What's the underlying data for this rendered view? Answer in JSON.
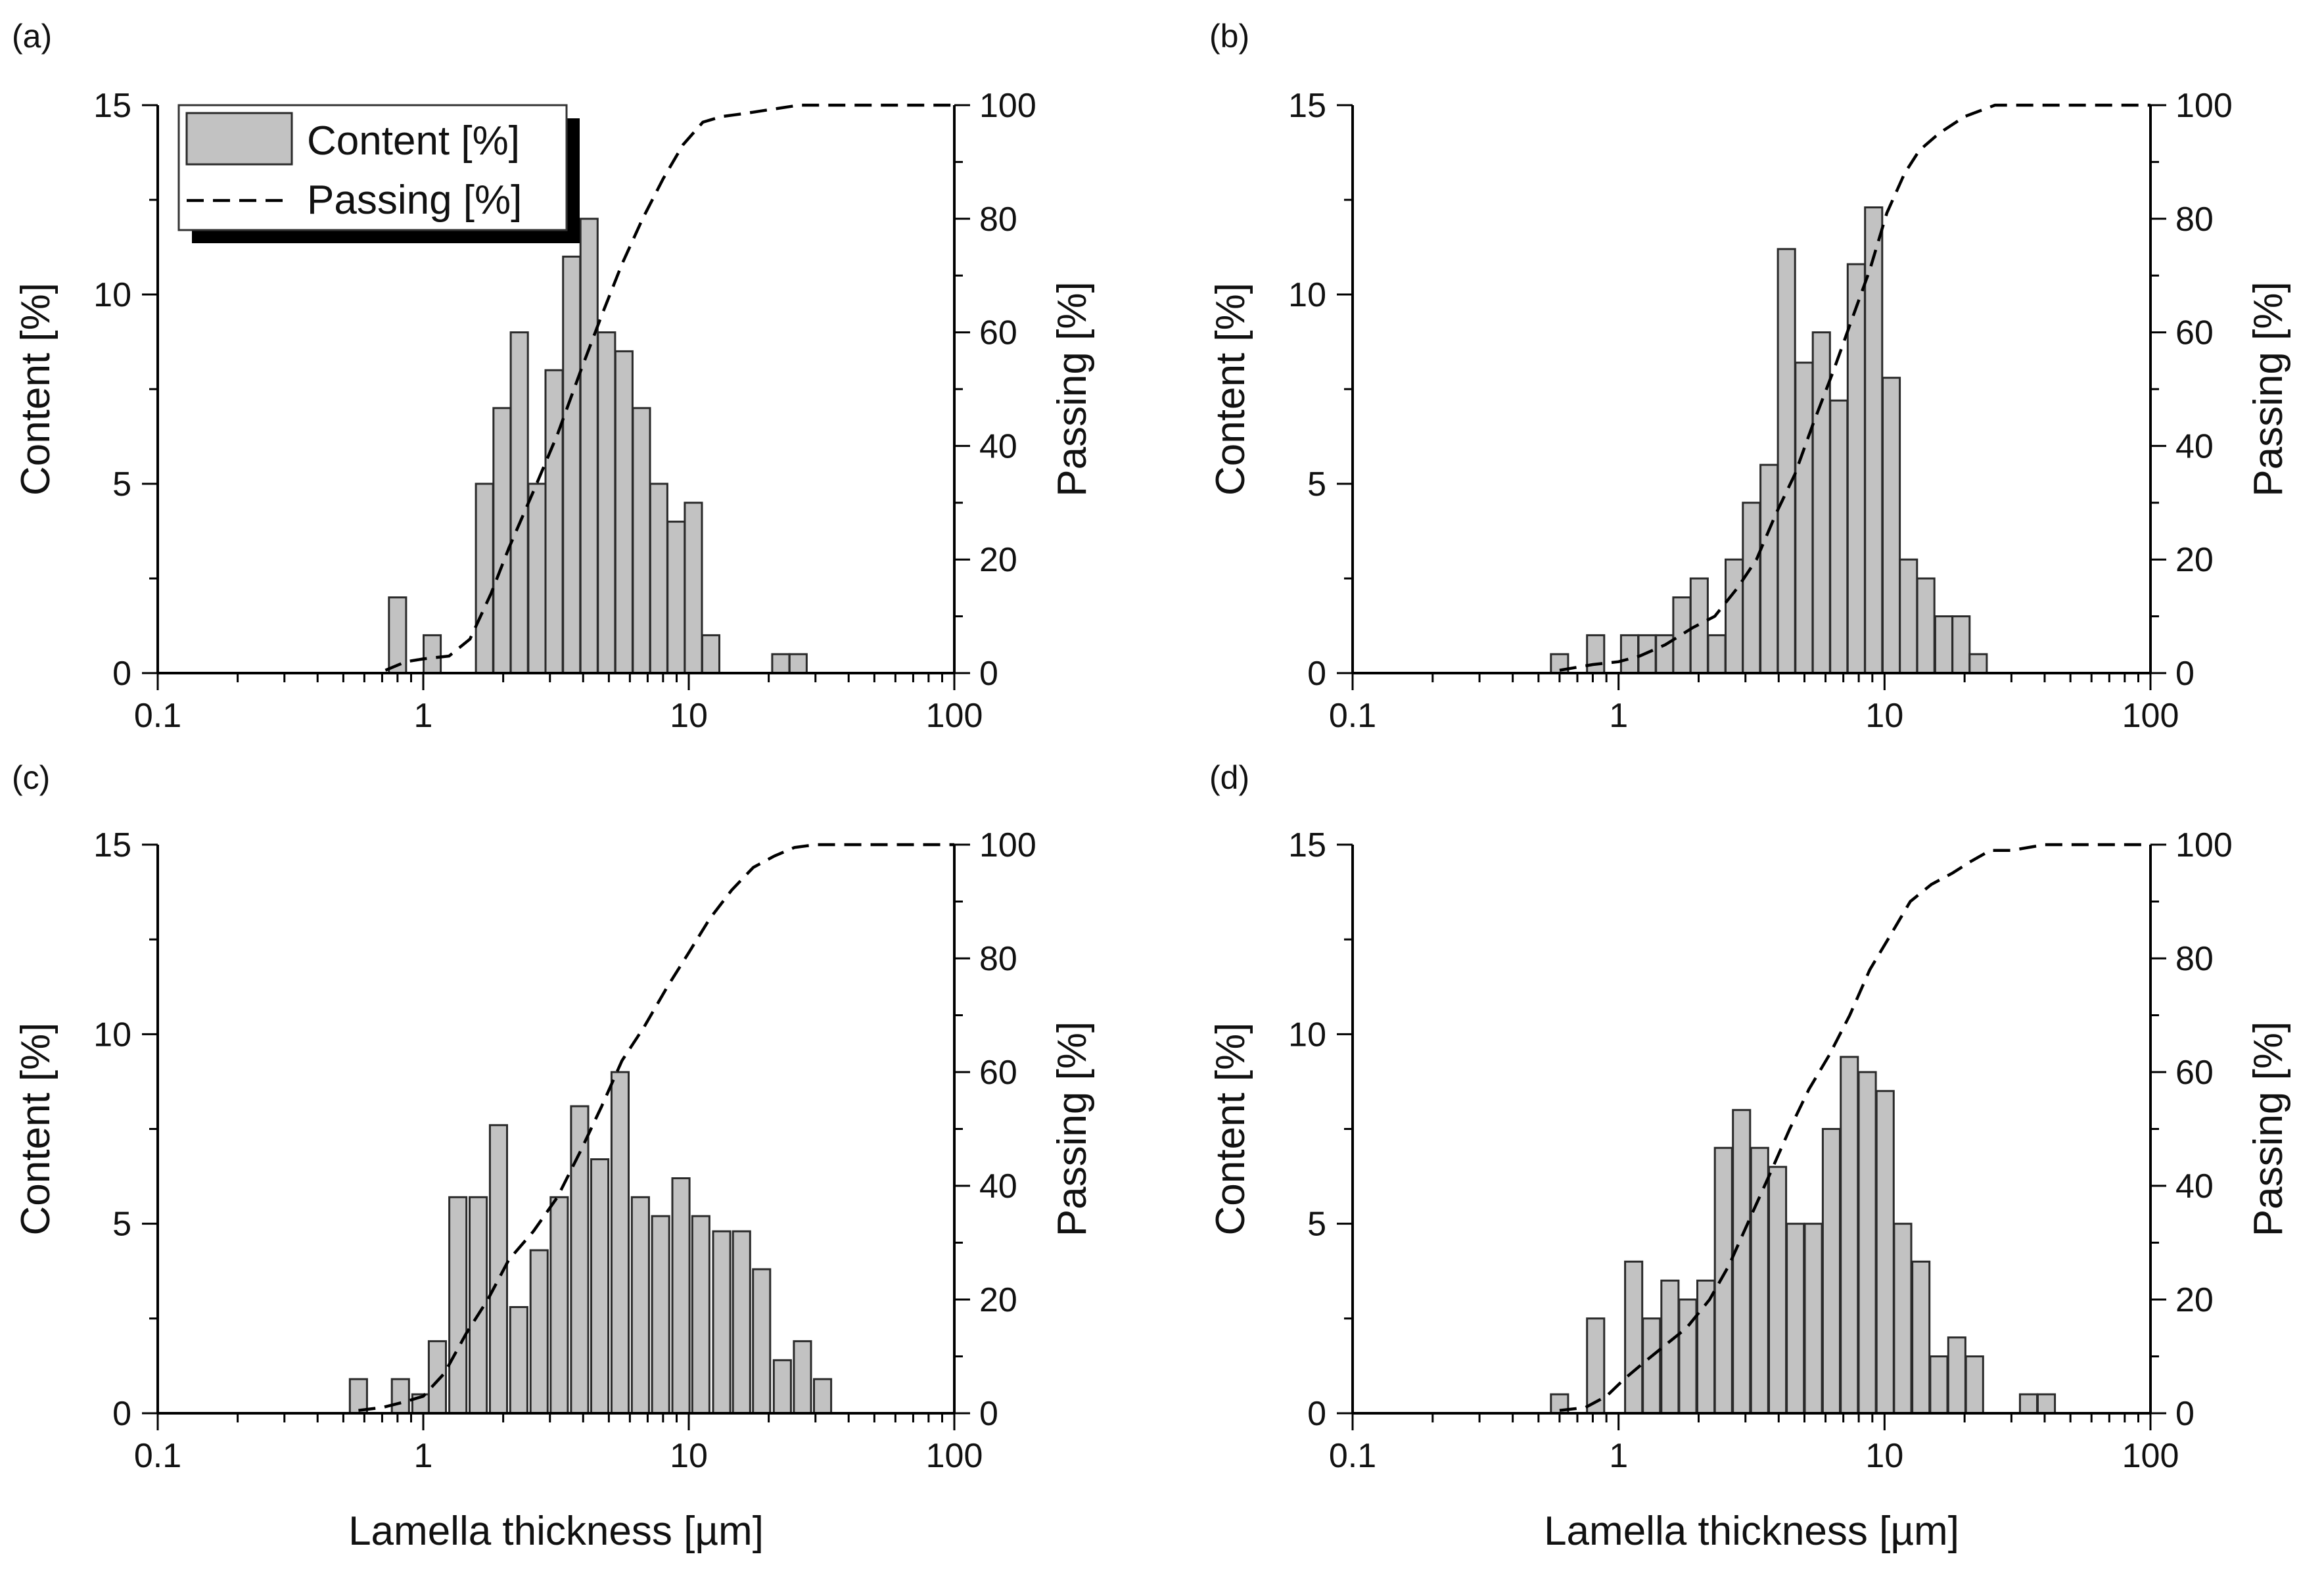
{
  "chart_data": [
    {
      "panel_label": "(a)",
      "type": "bar",
      "xscale": "log",
      "xlim": [
        0.1,
        100
      ],
      "xticks": [
        "0.1",
        "1",
        "10",
        "100"
      ],
      "ylabel": "Content [%]",
      "ylim": [
        0,
        15
      ],
      "yticks": [
        "0",
        "5",
        "10",
        "15"
      ],
      "y2label": "Passing [%]",
      "y2lim": [
        0,
        100
      ],
      "y2ticks": [
        "0",
        "20",
        "40",
        "60",
        "80",
        "100"
      ],
      "legend": [
        {
          "label": "Content [%]",
          "style": "bar"
        },
        {
          "label": "Passing [%]",
          "style": "dashed"
        }
      ],
      "bars": {
        "x": [
          0.8,
          0.93,
          1.08,
          1.26,
          1.46,
          1.7,
          1.98,
          2.3,
          2.68,
          3.11,
          3.62,
          4.21,
          4.9,
          5.7,
          6.63,
          7.71,
          8.96,
          10.4,
          12.1,
          14.1,
          16.4,
          19.1,
          22.2,
          25.8
        ],
        "values": [
          2,
          0,
          1,
          0,
          0,
          5,
          7,
          9,
          5,
          8,
          11,
          12,
          9,
          8.5,
          7,
          5,
          4,
          4.5,
          1,
          0,
          0,
          0,
          0.5,
          0.5
        ]
      },
      "passing": {
        "x": [
          0.72,
          0.86,
          1.0,
          1.25,
          1.5,
          1.8,
          2.1,
          2.6,
          3.2,
          3.9,
          4.7,
          5.6,
          6.7,
          8.0,
          9.5,
          11.3,
          13.3,
          16.0,
          26.0,
          100
        ],
        "values": [
          0.5,
          2,
          2.5,
          3,
          6,
          14,
          22,
          32,
          42,
          53,
          63,
          72,
          80,
          87,
          93,
          97,
          98,
          98.5,
          100,
          100
        ]
      }
    },
    {
      "panel_label": "(b)",
      "type": "bar",
      "xscale": "log",
      "xlim": [
        0.1,
        100
      ],
      "xticks": [
        "0.1",
        "1",
        "10",
        "100"
      ],
      "ylabel": "Content [%]",
      "ylim": [
        0,
        15
      ],
      "yticks": [
        "0",
        "5",
        "10",
        "15"
      ],
      "y2label": "Passing [%]",
      "y2lim": [
        0,
        100
      ],
      "y2ticks": [
        "0",
        "20",
        "40",
        "60",
        "80",
        "100"
      ],
      "bars": {
        "x": [
          0.6,
          0.7,
          0.82,
          0.95,
          1.1,
          1.28,
          1.49,
          1.73,
          2.01,
          2.34,
          2.72,
          3.16,
          3.68,
          4.28,
          4.98,
          5.79,
          6.73,
          7.83,
          9.1,
          10.6,
          12.3,
          14.3,
          16.7,
          19.4,
          22.5,
          26.2,
          30.5
        ],
        "values": [
          0.5,
          0,
          1,
          0,
          1,
          1,
          1,
          2,
          2.5,
          1,
          3,
          4.5,
          5.5,
          11.2,
          8.2,
          9,
          7.2,
          10.8,
          12.3,
          7.8,
          3,
          2.5,
          1.5,
          1.5,
          0.5,
          0,
          0
        ]
      },
      "passing": {
        "x": [
          0.6,
          0.8,
          1.0,
          1.2,
          1.5,
          1.9,
          2.3,
          2.8,
          3.3,
          3.9,
          4.6,
          5.4,
          6.4,
          7.5,
          8.8,
          10.2,
          11.9,
          13.5,
          16.0,
          20.0,
          26.0,
          100
        ],
        "values": [
          0.5,
          1.5,
          2,
          3,
          5,
          8,
          10,
          15,
          20,
          28,
          35,
          44,
          53,
          62,
          71,
          81,
          88,
          92,
          95,
          98,
          100,
          100
        ]
      }
    },
    {
      "panel_label": "(c)",
      "type": "bar",
      "xscale": "log",
      "xlim": [
        0.1,
        100
      ],
      "xticks": [
        "0.1",
        "1",
        "10",
        "100"
      ],
      "xlabel": "Lamella thickness [µm]",
      "ylabel": "Content [%]",
      "ylim": [
        0,
        15
      ],
      "yticks": [
        "0",
        "5",
        "10",
        "15"
      ],
      "y2label": "Passing [%]",
      "y2lim": [
        0,
        100
      ],
      "y2ticks": [
        "0",
        "20",
        "40",
        "60",
        "80",
        "100"
      ],
      "bars": {
        "x": [
          0.57,
          0.68,
          0.82,
          0.98,
          1.13,
          1.35,
          1.61,
          1.92,
          2.29,
          2.73,
          3.25,
          3.88,
          4.62,
          5.51,
          6.57,
          7.83,
          9.34,
          11.1,
          13.3,
          15.8,
          18.8,
          22.5,
          26.8,
          31.9
        ],
        "values": [
          0.9,
          0,
          0.9,
          0.5,
          1.9,
          5.7,
          5.7,
          7.6,
          2.8,
          4.3,
          5.7,
          8.1,
          6.7,
          9,
          5.7,
          5.2,
          6.2,
          5.2,
          4.8,
          4.8,
          3.8,
          1.4,
          1.9,
          0.9
        ]
      },
      "passing": {
        "x": [
          0.57,
          0.7,
          0.85,
          1.0,
          1.2,
          1.45,
          1.75,
          2.1,
          2.6,
          3.2,
          3.9,
          4.7,
          5.6,
          6.8,
          8.3,
          10.0,
          12.0,
          14.5,
          17.5,
          21.0,
          25.0,
          30.0,
          100
        ],
        "values": [
          0.5,
          1,
          2,
          3,
          7,
          14,
          20,
          27,
          32,
          38,
          46,
          54,
          62,
          68,
          75,
          81,
          87,
          92,
          96,
          98,
          99.5,
          100,
          100
        ]
      }
    },
    {
      "panel_label": "(d)",
      "type": "bar",
      "xscale": "log",
      "xlim": [
        0.1,
        100
      ],
      "xticks": [
        "0.1",
        "1",
        "10",
        "100"
      ],
      "xlabel": "Lamella thickness [µm]",
      "ylabel": "Content [%]",
      "ylim": [
        0,
        15
      ],
      "yticks": [
        "0",
        "5",
        "10",
        "15"
      ],
      "y2label": "Passing [%]",
      "y2lim": [
        0,
        100
      ],
      "y2ticks": [
        "0",
        "20",
        "40",
        "60",
        "80",
        "100"
      ],
      "bars": {
        "x": [
          0.6,
          0.7,
          0.82,
          0.95,
          1.14,
          1.33,
          1.56,
          1.82,
          2.13,
          2.48,
          2.9,
          3.39,
          3.96,
          4.62,
          5.4,
          6.31,
          7.37,
          8.61,
          10.05,
          11.7,
          13.7,
          16.0,
          18.7,
          21.8,
          25.5,
          29.8,
          34.8,
          40.6,
          47.4
        ],
        "values": [
          0.5,
          0,
          2.5,
          0,
          4,
          2.5,
          3.5,
          3,
          3.5,
          7,
          8,
          7,
          6.5,
          5,
          5,
          7.5,
          9.4,
          9,
          8.5,
          5,
          4,
          1.5,
          2,
          1.5,
          0,
          0,
          0.5,
          0.5,
          0
        ]
      },
      "passing": {
        "x": [
          0.6,
          0.75,
          0.9,
          1.05,
          1.25,
          1.5,
          1.8,
          2.2,
          2.6,
          3.1,
          3.7,
          4.4,
          5.2,
          6.2,
          7.4,
          8.8,
          10.5,
          12.5,
          15.0,
          18.0,
          21.0,
          25.0,
          30.0,
          40.0,
          100
        ],
        "values": [
          0.5,
          1,
          3,
          6,
          9,
          12,
          15,
          20,
          26,
          34,
          42,
          50,
          57,
          63,
          70,
          78,
          84,
          90,
          93,
          95,
          97,
          99,
          99,
          100,
          100
        ]
      }
    }
  ]
}
